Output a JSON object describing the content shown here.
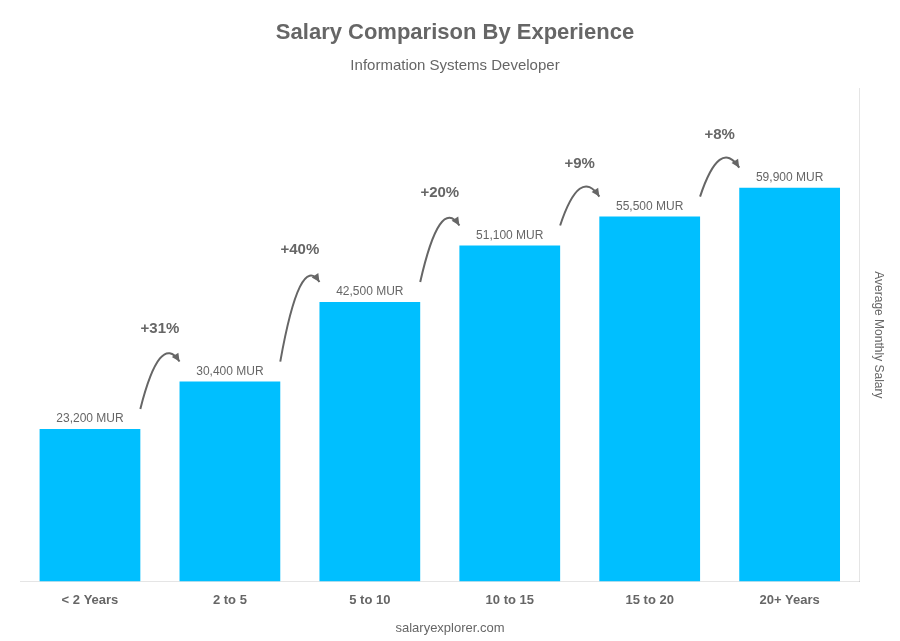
{
  "chart_data": {
    "type": "bar",
    "title": "Salary Comparison By Experience",
    "subtitle": "Information Systems Developer",
    "categories": [
      "< 2 Years",
      "2 to 5",
      "5 to 10",
      "10 to 15",
      "15 to 20",
      "20+ Years"
    ],
    "values": [
      23200,
      30400,
      42500,
      51100,
      55500,
      59900
    ],
    "value_labels": [
      "23,200 MUR",
      "30,400 MUR",
      "42,500 MUR",
      "51,100 MUR",
      "55,500 MUR",
      "59,900 MUR"
    ],
    "data_labels": true,
    "annotations": [
      "+31%",
      "+40%",
      "+20%",
      "+9%",
      "+8%"
    ],
    "color": "#00bfff",
    "ylabel": "Average Monthly Salary",
    "ylim": [
      0,
      75000
    ],
    "yticks": [],
    "tick_labels": "x",
    "grid": false,
    "footer": "salaryexplorer.com"
  }
}
